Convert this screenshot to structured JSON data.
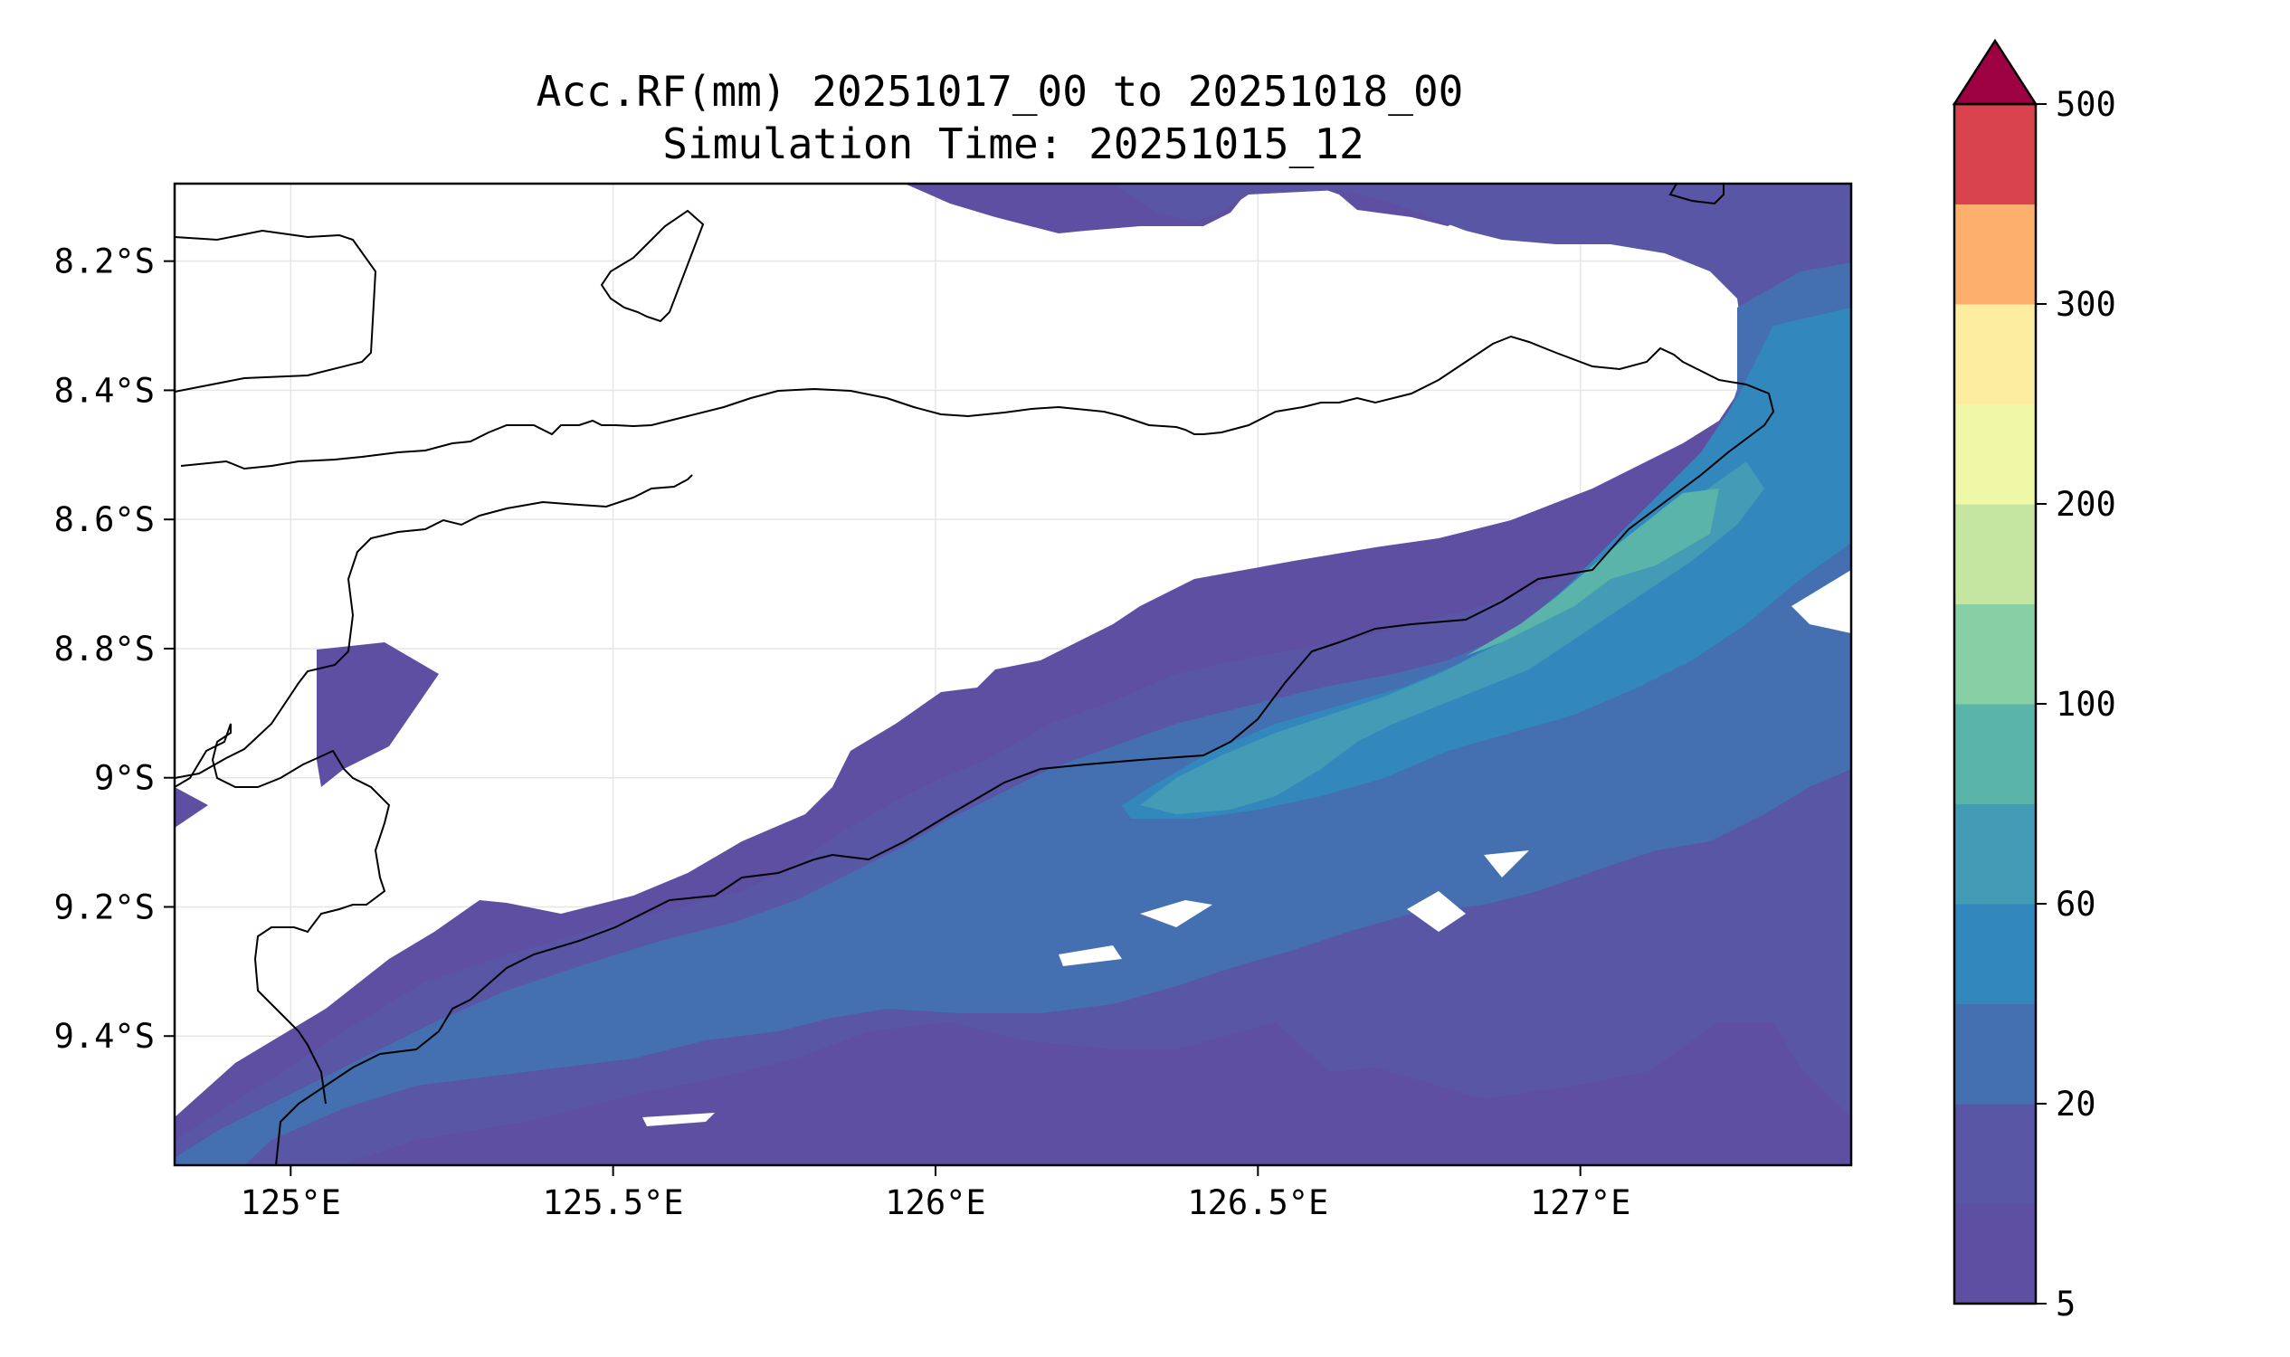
{
  "title": {
    "line1": "Acc.RF(mm) 20251017_00 to 20251018_00",
    "line2": "Simulation Time: 20251015_12"
  },
  "map": {
    "lon_range": [
      124.82,
      127.42
    ],
    "lat_range": [
      -9.6,
      -8.08
    ],
    "x_ticks": [
      {
        "value": 125.0,
        "label": "125°E"
      },
      {
        "value": 125.5,
        "label": "125.5°E"
      },
      {
        "value": 126.0,
        "label": "126°E"
      },
      {
        "value": 126.5,
        "label": "126.5°E"
      },
      {
        "value": 127.0,
        "label": "127°E"
      }
    ],
    "y_ticks": [
      {
        "value": -8.2,
        "label": "8.2°S"
      },
      {
        "value": -8.4,
        "label": "8.4°S"
      },
      {
        "value": -8.6,
        "label": "8.6°S"
      },
      {
        "value": -8.8,
        "label": "8.8°S"
      },
      {
        "value": -9.0,
        "label": "9°S"
      },
      {
        "value": -9.2,
        "label": "9.2°S"
      },
      {
        "value": -9.4,
        "label": "9.4°S"
      }
    ],
    "grid": true
  },
  "colorbar": {
    "levels": [
      5,
      10,
      20,
      40,
      60,
      80,
      100,
      150,
      200,
      250,
      300,
      400,
      500
    ],
    "labeled_levels": [
      {
        "value": 5,
        "label": "5"
      },
      {
        "value": 20,
        "label": "20"
      },
      {
        "value": 60,
        "label": "60"
      },
      {
        "value": 100,
        "label": "100"
      },
      {
        "value": 200,
        "label": "200"
      },
      {
        "value": 300,
        "label": "300"
      },
      {
        "value": 500,
        "label": "500"
      }
    ],
    "colors": [
      "#5e4fa2",
      "#5956a5",
      "#4470b1",
      "#3288bd",
      "#439bb5",
      "#5ab4aa",
      "#87cfa4",
      "#c4e6a0",
      "#eef8a6",
      "#fdeda1",
      "#fdb06d",
      "#d8434e"
    ],
    "extend_color": "#9e0142",
    "extend": "max"
  }
}
